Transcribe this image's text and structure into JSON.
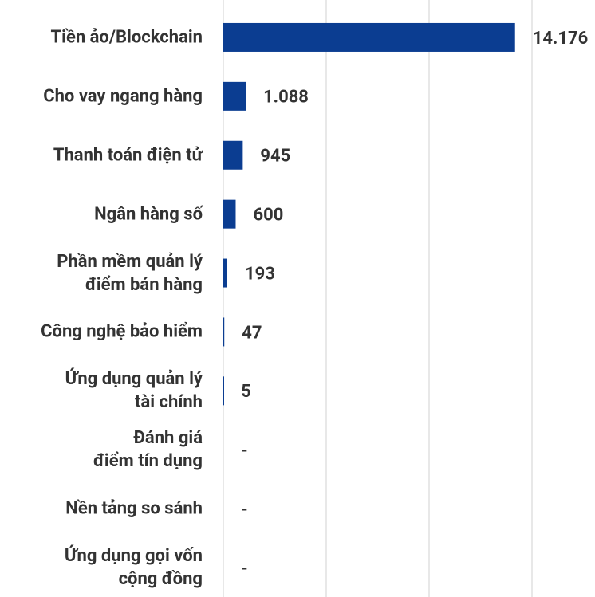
{
  "chart_data": {
    "type": "bar",
    "orientation": "horizontal",
    "categories": [
      "Tiền ảo/Blockchain",
      "Cho vay ngang hàng",
      "Thanh toán điện tử",
      "Ngân hàng số",
      "Phần mềm quản lý\nđiểm bán hàng",
      "Công nghệ bảo hiểm",
      "Ứng dụng quản lý\ntài chính",
      "Đánh giá\nđiểm tín dụng",
      "Nền tảng so sánh",
      "Ứng dụng gọi vốn\ncộng đồng"
    ],
    "values": [
      14176,
      1088,
      945,
      600,
      193,
      47,
      5,
      null,
      null,
      null
    ],
    "value_labels": [
      "14.176",
      "1.088",
      "945",
      "600",
      "193",
      "47",
      "5",
      "-",
      "-",
      "-"
    ],
    "color": "#0b3d91",
    "xlim": [
      0,
      15000
    ],
    "xticks": [
      0,
      5000,
      10000,
      15000
    ],
    "grid": true
  }
}
